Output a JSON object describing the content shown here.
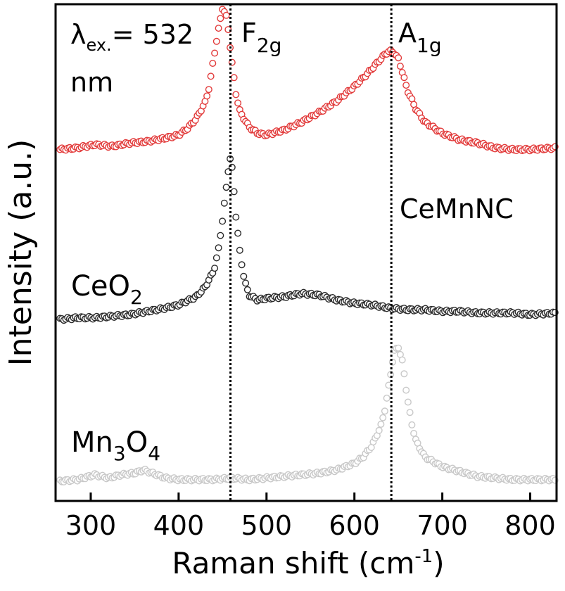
{
  "chart_data": {
    "type": "scatter",
    "title": "",
    "xlabel": "Raman shift (cm",
    "xlabel_sup": "-1",
    "xlabel_tail": ")",
    "ylabel": "Intensity (a.u.)",
    "xlim": [
      260,
      830
    ],
    "xticks": [
      300,
      400,
      500,
      600,
      700,
      800
    ],
    "yticks_shown": false,
    "grid": false,
    "annotations": {
      "excitation": {
        "lambda": "λ",
        "sub": "ex.",
        "value": "= 532",
        "unit": "nm"
      },
      "peak1": {
        "base": "F",
        "sub": "2g",
        "x": 459
      },
      "peak2": {
        "base": "A",
        "sub": "1g",
        "x": 642
      }
    },
    "series_labels": {
      "cemnnc": "CeMnNC",
      "ceo2": {
        "base": "CeO",
        "sub": "2"
      },
      "mn3o4": {
        "base1": "Mn",
        "sub1": "3",
        "base2": "O",
        "sub2": "4"
      }
    },
    "series": [
      {
        "name": "CeMnNC",
        "color": "#e23a3a",
        "offset": 2.0,
        "x": [
          265,
          285,
          305,
          325,
          345,
          365,
          385,
          400,
          410,
          420,
          430,
          435,
          440,
          445,
          450,
          455,
          460,
          465,
          470,
          480,
          490,
          500,
          520,
          540,
          560,
          580,
          600,
          615,
          625,
          635,
          640,
          645,
          650,
          655,
          660,
          670,
          680,
          700,
          720,
          740,
          760,
          780,
          800,
          830
        ],
        "y": [
          0.05,
          0.06,
          0.08,
          0.07,
          0.09,
          0.1,
          0.12,
          0.14,
          0.18,
          0.24,
          0.34,
          0.44,
          0.62,
          0.78,
          0.93,
          0.86,
          0.62,
          0.4,
          0.28,
          0.19,
          0.15,
          0.14,
          0.17,
          0.22,
          0.28,
          0.35,
          0.44,
          0.52,
          0.58,
          0.64,
          0.66,
          0.65,
          0.61,
          0.52,
          0.42,
          0.3,
          0.22,
          0.15,
          0.11,
          0.09,
          0.06,
          0.05,
          0.05,
          0.06
        ]
      },
      {
        "name": "CeO2",
        "color": "#2b2b2b",
        "offset": 1.0,
        "x": [
          265,
          285,
          305,
          325,
          345,
          365,
          385,
          400,
          420,
          430,
          440,
          445,
          450,
          455,
          458,
          460,
          462,
          465,
          470,
          475,
          480,
          490,
          500,
          520,
          540,
          560,
          580,
          600,
          620,
          640,
          660,
          680,
          700,
          720,
          740,
          760,
          780,
          800,
          830
        ],
        "y": [
          0.0,
          0.01,
          0.01,
          0.02,
          0.03,
          0.05,
          0.07,
          0.09,
          0.14,
          0.2,
          0.3,
          0.42,
          0.62,
          0.85,
          1.0,
          0.98,
          0.86,
          0.65,
          0.4,
          0.24,
          0.15,
          0.12,
          0.13,
          0.14,
          0.16,
          0.15,
          0.12,
          0.1,
          0.09,
          0.07,
          0.06,
          0.06,
          0.05,
          0.05,
          0.04,
          0.04,
          0.04,
          0.03,
          0.04
        ]
      },
      {
        "name": "Mn3O4",
        "color": "#c8c8c8",
        "offset": 0.0,
        "x": [
          265,
          285,
          305,
          320,
          335,
          350,
          360,
          370,
          385,
          400,
          420,
          440,
          460,
          480,
          500,
          520,
          540,
          560,
          580,
          600,
          610,
          620,
          630,
          635,
          640,
          645,
          650,
          655,
          660,
          665,
          670,
          680,
          700,
          720,
          740,
          760,
          780,
          800,
          830
        ],
        "y": [
          0.0,
          0.01,
          0.04,
          0.02,
          0.04,
          0.05,
          0.07,
          0.05,
          0.02,
          0.01,
          0.01,
          0.01,
          0.02,
          0.01,
          0.02,
          0.03,
          0.04,
          0.05,
          0.07,
          0.11,
          0.15,
          0.22,
          0.34,
          0.45,
          0.62,
          0.8,
          0.83,
          0.73,
          0.52,
          0.36,
          0.25,
          0.15,
          0.09,
          0.06,
          0.03,
          0.02,
          0.01,
          0.01,
          0.01
        ]
      }
    ]
  }
}
